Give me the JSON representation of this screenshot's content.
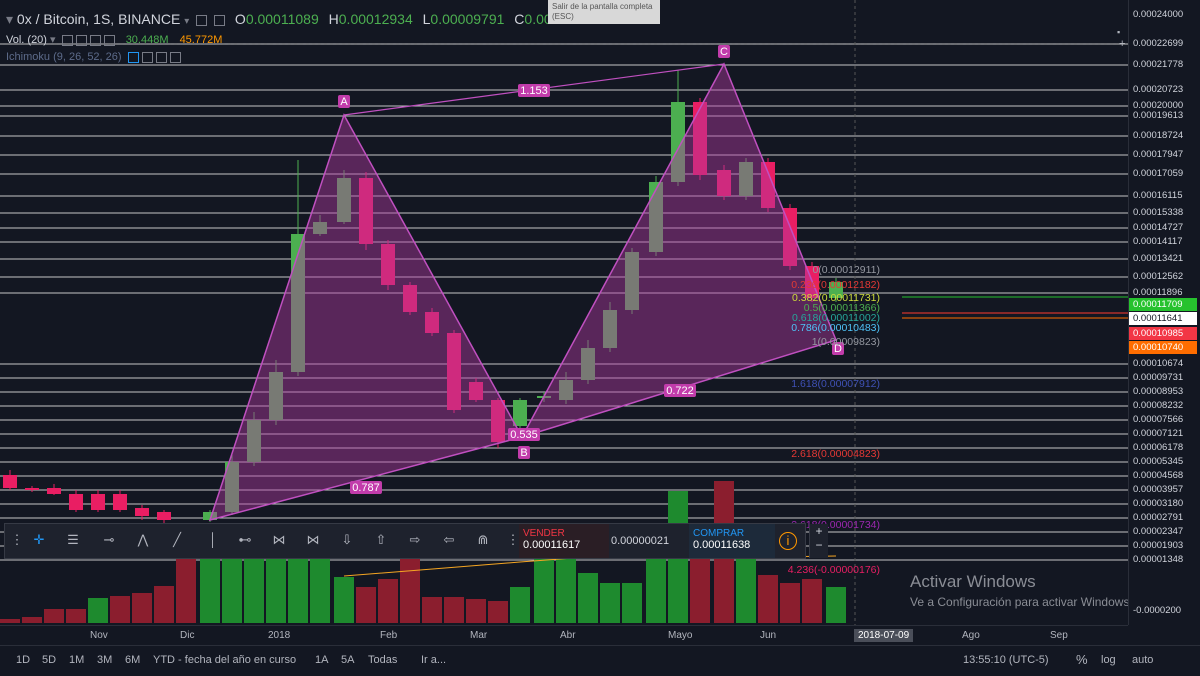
{
  "header": {
    "symbol": "0x / Bitcoin, 1S, BINANCE",
    "o_label": "O",
    "o_value": "0.00011089",
    "h_label": "H",
    "h_value": "0.00012934",
    "l_label": "L",
    "l_value": "0.00009791",
    "c_label": "C",
    "c_value": "0.0001...",
    "volume_label": "Vol. (20)",
    "volume_value1": "30.448M",
    "volume_value2": "45.772M",
    "ichimoku_label": "Ichimoku (9, 26, 52, 26)",
    "exit_fullscreen": "Salir de la pantalla completa (ESC)"
  },
  "pattern": {
    "points": [
      "A",
      "B",
      "C",
      "D"
    ],
    "ratios": [
      "1.153",
      "0.535",
      "0.722",
      "0.787"
    ]
  },
  "fib_levels": [
    {
      "label": "0(0.00012911)",
      "color": "#9598a1"
    },
    {
      "label": "0.236(0.00012182)",
      "color": "#e53935"
    },
    {
      "label": "0.382(0.00011731)",
      "color": "#cddc39"
    },
    {
      "label": "0.5(0.00011366)",
      "color": "#4caf50"
    },
    {
      "label": "0.618(0.00011002)",
      "color": "#26a69a"
    },
    {
      "label": "0.786(0.00010483)",
      "color": "#4fc3f7"
    },
    {
      "label": "1(0.00009823)",
      "color": "#9598a1"
    },
    {
      "label": "1.618(0.00007912)",
      "color": "#3f51b5"
    },
    {
      "label": "2.618(0.00004823)",
      "color": "#e53935"
    },
    {
      "label": "3.618(0.00001734)",
      "color": "#9c27b0"
    },
    {
      "label": "4.236(-0.00000176)",
      "color": "#e91e63"
    }
  ],
  "price_axis": {
    "labels": [
      "0.00024000",
      "0.00022699",
      "0.00021778",
      "0.00020723",
      "0.00020000",
      "0.00019613",
      "0.00018724",
      "0.00017947",
      "0.00017059",
      "0.00016115",
      "0.00015338",
      "0.00014727",
      "0.00014117",
      "0.00013421",
      "0.00012562",
      "0.00011896",
      "0.00010674",
      "0.00009731",
      "0.00008953",
      "0.00008232",
      "0.00007566",
      "0.00007121",
      "0.00006178",
      "0.00005345",
      "0.00004568",
      "0.00003957",
      "0.00003180",
      "0.00002791",
      "0.00002347",
      "0.00001903",
      "0.00001348",
      "-0.0000200"
    ],
    "tag_green": "0.00011709",
    "tag_white": "0.00011641",
    "tag_red": "0.00010985",
    "tag_orange": "0.00010740",
    "colors": {
      "green": "#26c22e",
      "red": "#f23645",
      "orange": "#ff6d00",
      "white": "#ffffff"
    }
  },
  "time_axis": {
    "labels": [
      "Nov",
      "Dic",
      "2018",
      "Feb",
      "Mar",
      "Abr",
      "Mayo",
      "Jun",
      "Ago",
      "Sep"
    ],
    "highlight": "2018-07-09"
  },
  "drawing_toolbar": {
    "sell_label": "VENDER",
    "sell_price": "0.00011617",
    "spread": "0.00000021",
    "buy_label": "COMPRAR",
    "buy_price": "0.00011638",
    "plus": "+",
    "minus": "−"
  },
  "bottom_bar": {
    "ranges": [
      "1D",
      "5D",
      "1M",
      "3M",
      "6M",
      "YTD - fecha del año en curso",
      "1A",
      "5A",
      "Todas",
      "Ir a..."
    ],
    "time": "13:55:10 (UTC-5)",
    "percent": "%",
    "log": "log",
    "auto": "auto"
  },
  "watermark": {
    "title": "Activar Windows",
    "subtitle": "Ve a Configuración para activar Windows."
  },
  "colors": {
    "up": "#4caf50",
    "down": "#e91e63",
    "pattern": "#b03aa0",
    "background": "#131722"
  }
}
